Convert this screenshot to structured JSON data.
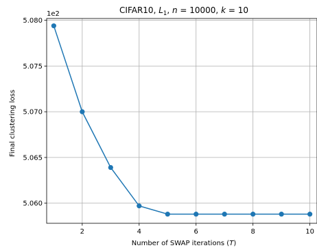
{
  "chart_data": {
    "type": "line",
    "title_parts": [
      "CIFAR10, ",
      "L",
      "1",
      ", ",
      "n",
      " = 10000, ",
      "k",
      " = 10"
    ],
    "xlabel_parts": [
      "Number of SWAP iterations (",
      "T",
      ")"
    ],
    "ylabel": "Final clustering loss",
    "y_offset_label": "1e2",
    "x": [
      1,
      2,
      3,
      4,
      5,
      6,
      7,
      8,
      9,
      10
    ],
    "series": [
      {
        "values": [
          5.0794,
          5.07,
          5.0639,
          5.0597,
          5.0588,
          5.0588,
          5.0588,
          5.0588,
          5.0588,
          5.0588
        ]
      }
    ],
    "xlim": [
      0.75,
      10.25
    ],
    "ylim": [
      5.0578,
      5.0802
    ],
    "xticks": [
      2,
      4,
      6,
      8,
      10
    ],
    "xtick_labels": [
      "2",
      "4",
      "6",
      "8",
      "10"
    ],
    "yticks": [
      5.06,
      5.065,
      5.07,
      5.075,
      5.08
    ],
    "ytick_labels": [
      "5.060",
      "5.065",
      "5.070",
      "5.075",
      "5.080"
    ],
    "grid": true,
    "line_color": "#1f77b4",
    "grid_color": "#b0b0b0"
  }
}
